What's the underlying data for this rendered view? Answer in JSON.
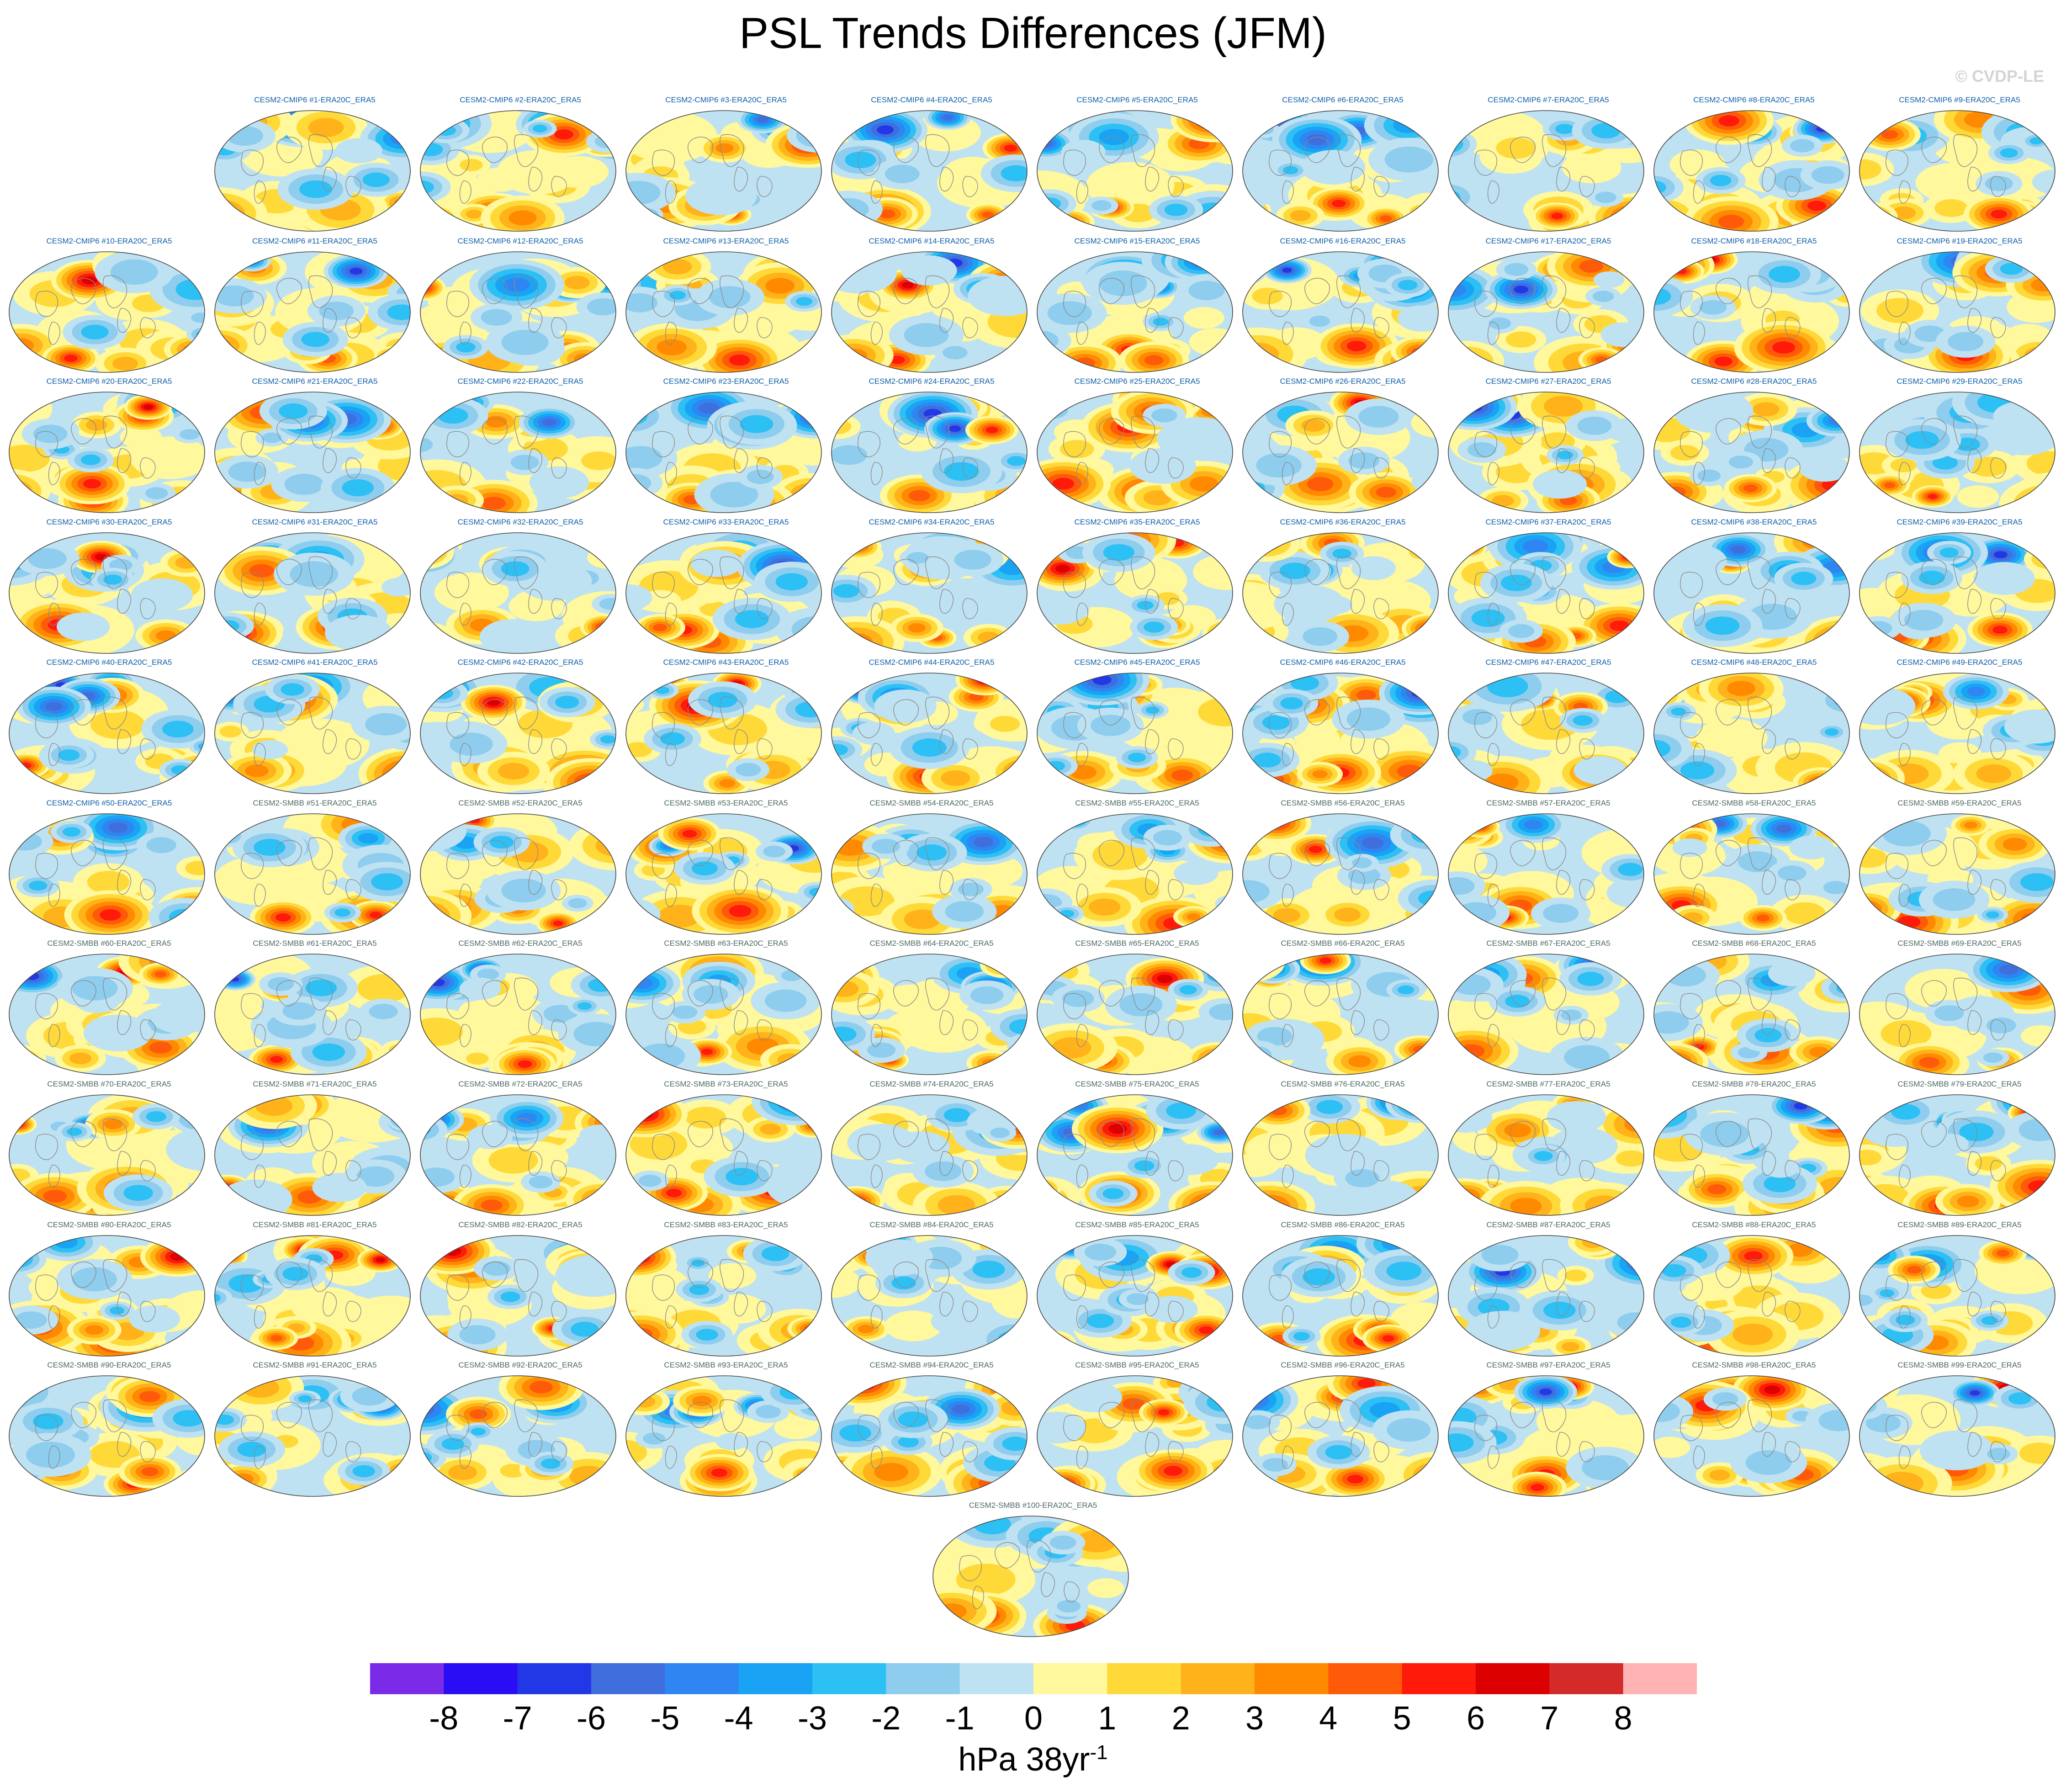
{
  "title": "PSL Trends Differences (JFM)",
  "watermark": "© CVDP-LE",
  "panels": [
    "CESM2-CMIP6 #1-ERA20C_ERA5",
    "CESM2-CMIP6 #2-ERA20C_ERA5",
    "CESM2-CMIP6 #3-ERA20C_ERA5",
    "CESM2-CMIP6 #4-ERA20C_ERA5",
    "CESM2-CMIP6 #5-ERA20C_ERA5",
    "CESM2-CMIP6 #6-ERA20C_ERA5",
    "CESM2-CMIP6 #7-ERA20C_ERA5",
    "CESM2-CMIP6 #8-ERA20C_ERA5",
    "CESM2-CMIP6 #9-ERA20C_ERA5",
    "CESM2-CMIP6 #10-ERA20C_ERA5",
    "CESM2-CMIP6 #11-ERA20C_ERA5",
    "CESM2-CMIP6 #12-ERA20C_ERA5",
    "CESM2-CMIP6 #13-ERA20C_ERA5",
    "CESM2-CMIP6 #14-ERA20C_ERA5",
    "CESM2-CMIP6 #15-ERA20C_ERA5",
    "CESM2-CMIP6 #16-ERA20C_ERA5",
    "CESM2-CMIP6 #17-ERA20C_ERA5",
    "CESM2-CMIP6 #18-ERA20C_ERA5",
    "CESM2-CMIP6 #19-ERA20C_ERA5",
    "CESM2-CMIP6 #20-ERA20C_ERA5",
    "CESM2-CMIP6 #21-ERA20C_ERA5",
    "CESM2-CMIP6 #22-ERA20C_ERA5",
    "CESM2-CMIP6 #23-ERA20C_ERA5",
    "CESM2-CMIP6 #24-ERA20C_ERA5",
    "CESM2-CMIP6 #25-ERA20C_ERA5",
    "CESM2-CMIP6 #26-ERA20C_ERA5",
    "CESM2-CMIP6 #27-ERA20C_ERA5",
    "CESM2-CMIP6 #28-ERA20C_ERA5",
    "CESM2-CMIP6 #29-ERA20C_ERA5",
    "CESM2-CMIP6 #30-ERA20C_ERA5",
    "CESM2-CMIP6 #31-ERA20C_ERA5",
    "CESM2-CMIP6 #32-ERA20C_ERA5",
    "CESM2-CMIP6 #33-ERA20C_ERA5",
    "CESM2-CMIP6 #34-ERA20C_ERA5",
    "CESM2-CMIP6 #35-ERA20C_ERA5",
    "CESM2-CMIP6 #36-ERA20C_ERA5",
    "CESM2-CMIP6 #37-ERA20C_ERA5",
    "CESM2-CMIP6 #38-ERA20C_ERA5",
    "CESM2-CMIP6 #39-ERA20C_ERA5",
    "CESM2-CMIP6 #40-ERA20C_ERA5",
    "CESM2-CMIP6 #41-ERA20C_ERA5",
    "CESM2-CMIP6 #42-ERA20C_ERA5",
    "CESM2-CMIP6 #43-ERA20C_ERA5",
    "CESM2-CMIP6 #44-ERA20C_ERA5",
    "CESM2-CMIP6 #45-ERA20C_ERA5",
    "CESM2-CMIP6 #46-ERA20C_ERA5",
    "CESM2-CMIP6 #47-ERA20C_ERA5",
    "CESM2-CMIP6 #48-ERA20C_ERA5",
    "CESM2-CMIP6 #49-ERA20C_ERA5",
    "CESM2-CMIP6 #50-ERA20C_ERA5",
    "CESM2-SMBB #51-ERA20C_ERA5",
    "CESM2-SMBB #52-ERA20C_ERA5",
    "CESM2-SMBB #53-ERA20C_ERA5",
    "CESM2-SMBB #54-ERA20C_ERA5",
    "CESM2-SMBB #55-ERA20C_ERA5",
    "CESM2-SMBB #56-ERA20C_ERA5",
    "CESM2-SMBB #57-ERA20C_ERA5",
    "CESM2-SMBB #58-ERA20C_ERA5",
    "CESM2-SMBB #59-ERA20C_ERA5",
    "CESM2-SMBB #60-ERA20C_ERA5",
    "CESM2-SMBB #61-ERA20C_ERA5",
    "CESM2-SMBB #62-ERA20C_ERA5",
    "CESM2-SMBB #63-ERA20C_ERA5",
    "CESM2-SMBB #64-ERA20C_ERA5",
    "CESM2-SMBB #65-ERA20C_ERA5",
    "CESM2-SMBB #66-ERA20C_ERA5",
    "CESM2-SMBB #67-ERA20C_ERA5",
    "CESM2-SMBB #68-ERA20C_ERA5",
    "CESM2-SMBB #69-ERA20C_ERA5",
    "CESM2-SMBB #70-ERA20C_ERA5",
    "CESM2-SMBB #71-ERA20C_ERA5",
    "CESM2-SMBB #72-ERA20C_ERA5",
    "CESM2-SMBB #73-ERA20C_ERA5",
    "CESM2-SMBB #74-ERA20C_ERA5",
    "CESM2-SMBB #75-ERA20C_ERA5",
    "CESM2-SMBB #76-ERA20C_ERA5",
    "CESM2-SMBB #77-ERA20C_ERA5",
    "CESM2-SMBB #78-ERA20C_ERA5",
    "CESM2-SMBB #79-ERA20C_ERA5",
    "CESM2-SMBB #80-ERA20C_ERA5",
    "CESM2-SMBB #81-ERA20C_ERA5",
    "CESM2-SMBB #82-ERA20C_ERA5",
    "CESM2-SMBB #83-ERA20C_ERA5",
    "CESM2-SMBB #84-ERA20C_ERA5",
    "CESM2-SMBB #85-ERA20C_ERA5",
    "CESM2-SMBB #86-ERA20C_ERA5",
    "CESM2-SMBB #87-ERA20C_ERA5",
    "CESM2-SMBB #88-ERA20C_ERA5",
    "CESM2-SMBB #89-ERA20C_ERA5",
    "CESM2-SMBB #90-ERA20C_ERA5",
    "CESM2-SMBB #91-ERA20C_ERA5",
    "CESM2-SMBB #92-ERA20C_ERA5",
    "CESM2-SMBB #93-ERA20C_ERA5",
    "CESM2-SMBB #94-ERA20C_ERA5",
    "CESM2-SMBB #95-ERA20C_ERA5",
    "CESM2-SMBB #96-ERA20C_ERA5",
    "CESM2-SMBB #97-ERA20C_ERA5",
    "CESM2-SMBB #98-ERA20C_ERA5",
    "CESM2-SMBB #99-ERA20C_ERA5",
    "CESM2-SMBB #100-ERA20C_ERA5"
  ],
  "colorbar": {
    "colors": [
      "#7b2be8",
      "#2a0df5",
      "#2238e6",
      "#3f6fdc",
      "#2f86f2",
      "#1aa2f5",
      "#2dc0f5",
      "#8fcdee",
      "#bfe2f2",
      "#fff89c",
      "#ffd937",
      "#ffb21a",
      "#ff8a00",
      "#ff5a0a",
      "#ff1a0a",
      "#dd0000",
      "#d42a2a",
      "#ffb3b3"
    ],
    "tick_values": [
      -8,
      -7,
      -6,
      -5,
      -4,
      -3,
      -2,
      -1,
      0,
      1,
      2,
      3,
      4,
      5,
      6,
      7,
      8
    ],
    "tick_labels": [
      "-8",
      "-7",
      "-6",
      "-5",
      "-4",
      "-3",
      "-2",
      "-1",
      "0",
      "1",
      "2",
      "3",
      "4",
      "5",
      "6",
      "7",
      "8"
    ]
  },
  "units": {
    "base": "hPa 38yr",
    "superscript": "-1"
  }
}
